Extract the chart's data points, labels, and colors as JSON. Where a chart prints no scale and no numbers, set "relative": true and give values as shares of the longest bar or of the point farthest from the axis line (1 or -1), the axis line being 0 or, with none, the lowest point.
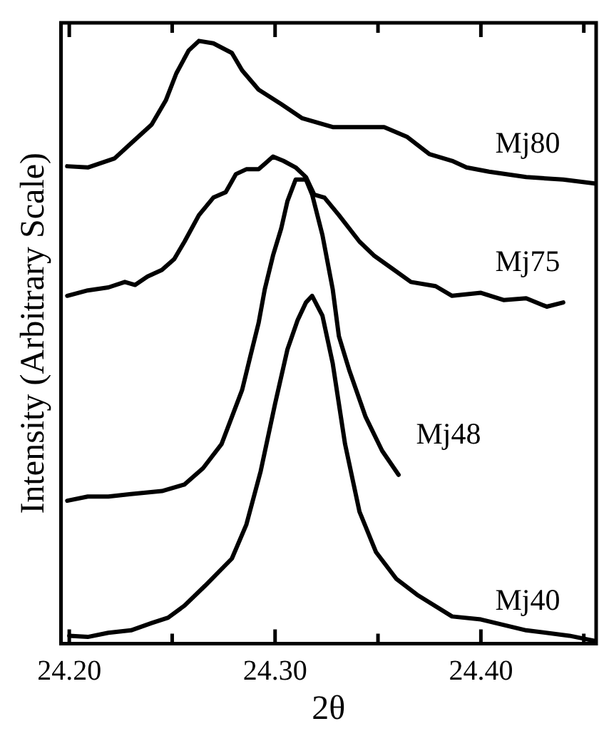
{
  "chart_data": {
    "type": "line",
    "relative": true,
    "xlabel": "2θ",
    "ylabel": "Intensity (Arbitrary Scale)",
    "xlim": [
      24.196,
      24.456
    ],
    "xticks": [
      {
        "value": 24.2,
        "label": "24.20"
      },
      {
        "value": 24.25,
        "label": null
      },
      {
        "value": 24.3,
        "label": "24.30"
      },
      {
        "value": 24.35,
        "label": null
      },
      {
        "value": 24.4,
        "label": "24.40"
      },
      {
        "value": 24.45,
        "label": null
      }
    ],
    "grid": false,
    "legend": false,
    "marker": "none",
    "line_style": "solid",
    "series": [
      {
        "name": "Mj80",
        "color": "#000000",
        "x": [
          24.199,
          24.209,
          24.222,
          24.23,
          24.24,
          24.247,
          24.252,
          24.258,
          24.263,
          24.27,
          24.279,
          24.284,
          24.292,
          24.303,
          24.313,
          24.328,
          24.339,
          24.353,
          24.364,
          24.375,
          24.386,
          24.393,
          24.404,
          24.422,
          24.44,
          24.456
        ],
        "values": [
          0.792,
          0.79,
          0.805,
          0.83,
          0.861,
          0.902,
          0.946,
          0.984,
          1.0,
          0.996,
          0.98,
          0.951,
          0.919,
          0.895,
          0.872,
          0.857,
          0.857,
          0.857,
          0.841,
          0.812,
          0.801,
          0.79,
          0.783,
          0.774,
          0.77,
          0.763
        ]
      },
      {
        "name": "Mj75",
        "color": "#000000",
        "x": [
          24.199,
          24.209,
          24.219,
          24.227,
          24.232,
          24.238,
          24.245,
          24.251,
          24.256,
          24.263,
          24.27,
          24.276,
          24.281,
          24.286,
          24.292,
          24.295,
          24.299,
          24.304,
          24.31,
          24.315,
          24.319,
          24.324,
          24.331,
          24.341,
          24.348,
          24.357,
          24.366,
          24.378,
          24.386,
          24.4,
          24.411,
          24.422,
          24.432,
          24.44
        ],
        "values": [
          0.577,
          0.586,
          0.591,
          0.6,
          0.595,
          0.609,
          0.62,
          0.638,
          0.667,
          0.711,
          0.74,
          0.749,
          0.779,
          0.787,
          0.787,
          0.796,
          0.808,
          0.801,
          0.79,
          0.774,
          0.745,
          0.74,
          0.711,
          0.667,
          0.644,
          0.622,
          0.6,
          0.593,
          0.577,
          0.582,
          0.57,
          0.573,
          0.559,
          0.566
        ]
      },
      {
        "name": "Mj48",
        "color": "#000000",
        "x": [
          24.199,
          24.209,
          24.219,
          24.23,
          24.245,
          24.256,
          24.265,
          24.274,
          24.279,
          24.284,
          24.288,
          24.292,
          24.295,
          24.299,
          24.303,
          24.306,
          24.31,
          24.315,
          24.318,
          24.323,
          24.328,
          24.331,
          24.336,
          24.344,
          24.352,
          24.36
        ],
        "values": [
          0.237,
          0.244,
          0.244,
          0.248,
          0.253,
          0.264,
          0.291,
          0.331,
          0.376,
          0.421,
          0.477,
          0.532,
          0.588,
          0.644,
          0.689,
          0.734,
          0.77,
          0.77,
          0.745,
          0.678,
          0.588,
          0.51,
          0.454,
          0.376,
          0.32,
          0.28
        ]
      },
      {
        "name": "Mj40",
        "color": "#000000",
        "x": [
          24.2,
          24.209,
          24.219,
          24.23,
          24.24,
          24.248,
          24.256,
          24.266,
          24.279,
          24.286,
          24.293,
          24.3,
          24.306,
          24.311,
          24.315,
          24.318,
          24.323,
          24.328,
          24.334,
          24.341,
          24.349,
          24.359,
          24.369,
          24.386,
          24.4,
          24.422,
          24.443,
          24.456
        ],
        "values": [
          0.013,
          0.011,
          0.018,
          0.022,
          0.034,
          0.043,
          0.063,
          0.096,
          0.141,
          0.197,
          0.286,
          0.398,
          0.488,
          0.537,
          0.566,
          0.577,
          0.544,
          0.465,
          0.331,
          0.219,
          0.152,
          0.107,
          0.081,
          0.045,
          0.04,
          0.022,
          0.013,
          0.004
        ]
      }
    ]
  }
}
